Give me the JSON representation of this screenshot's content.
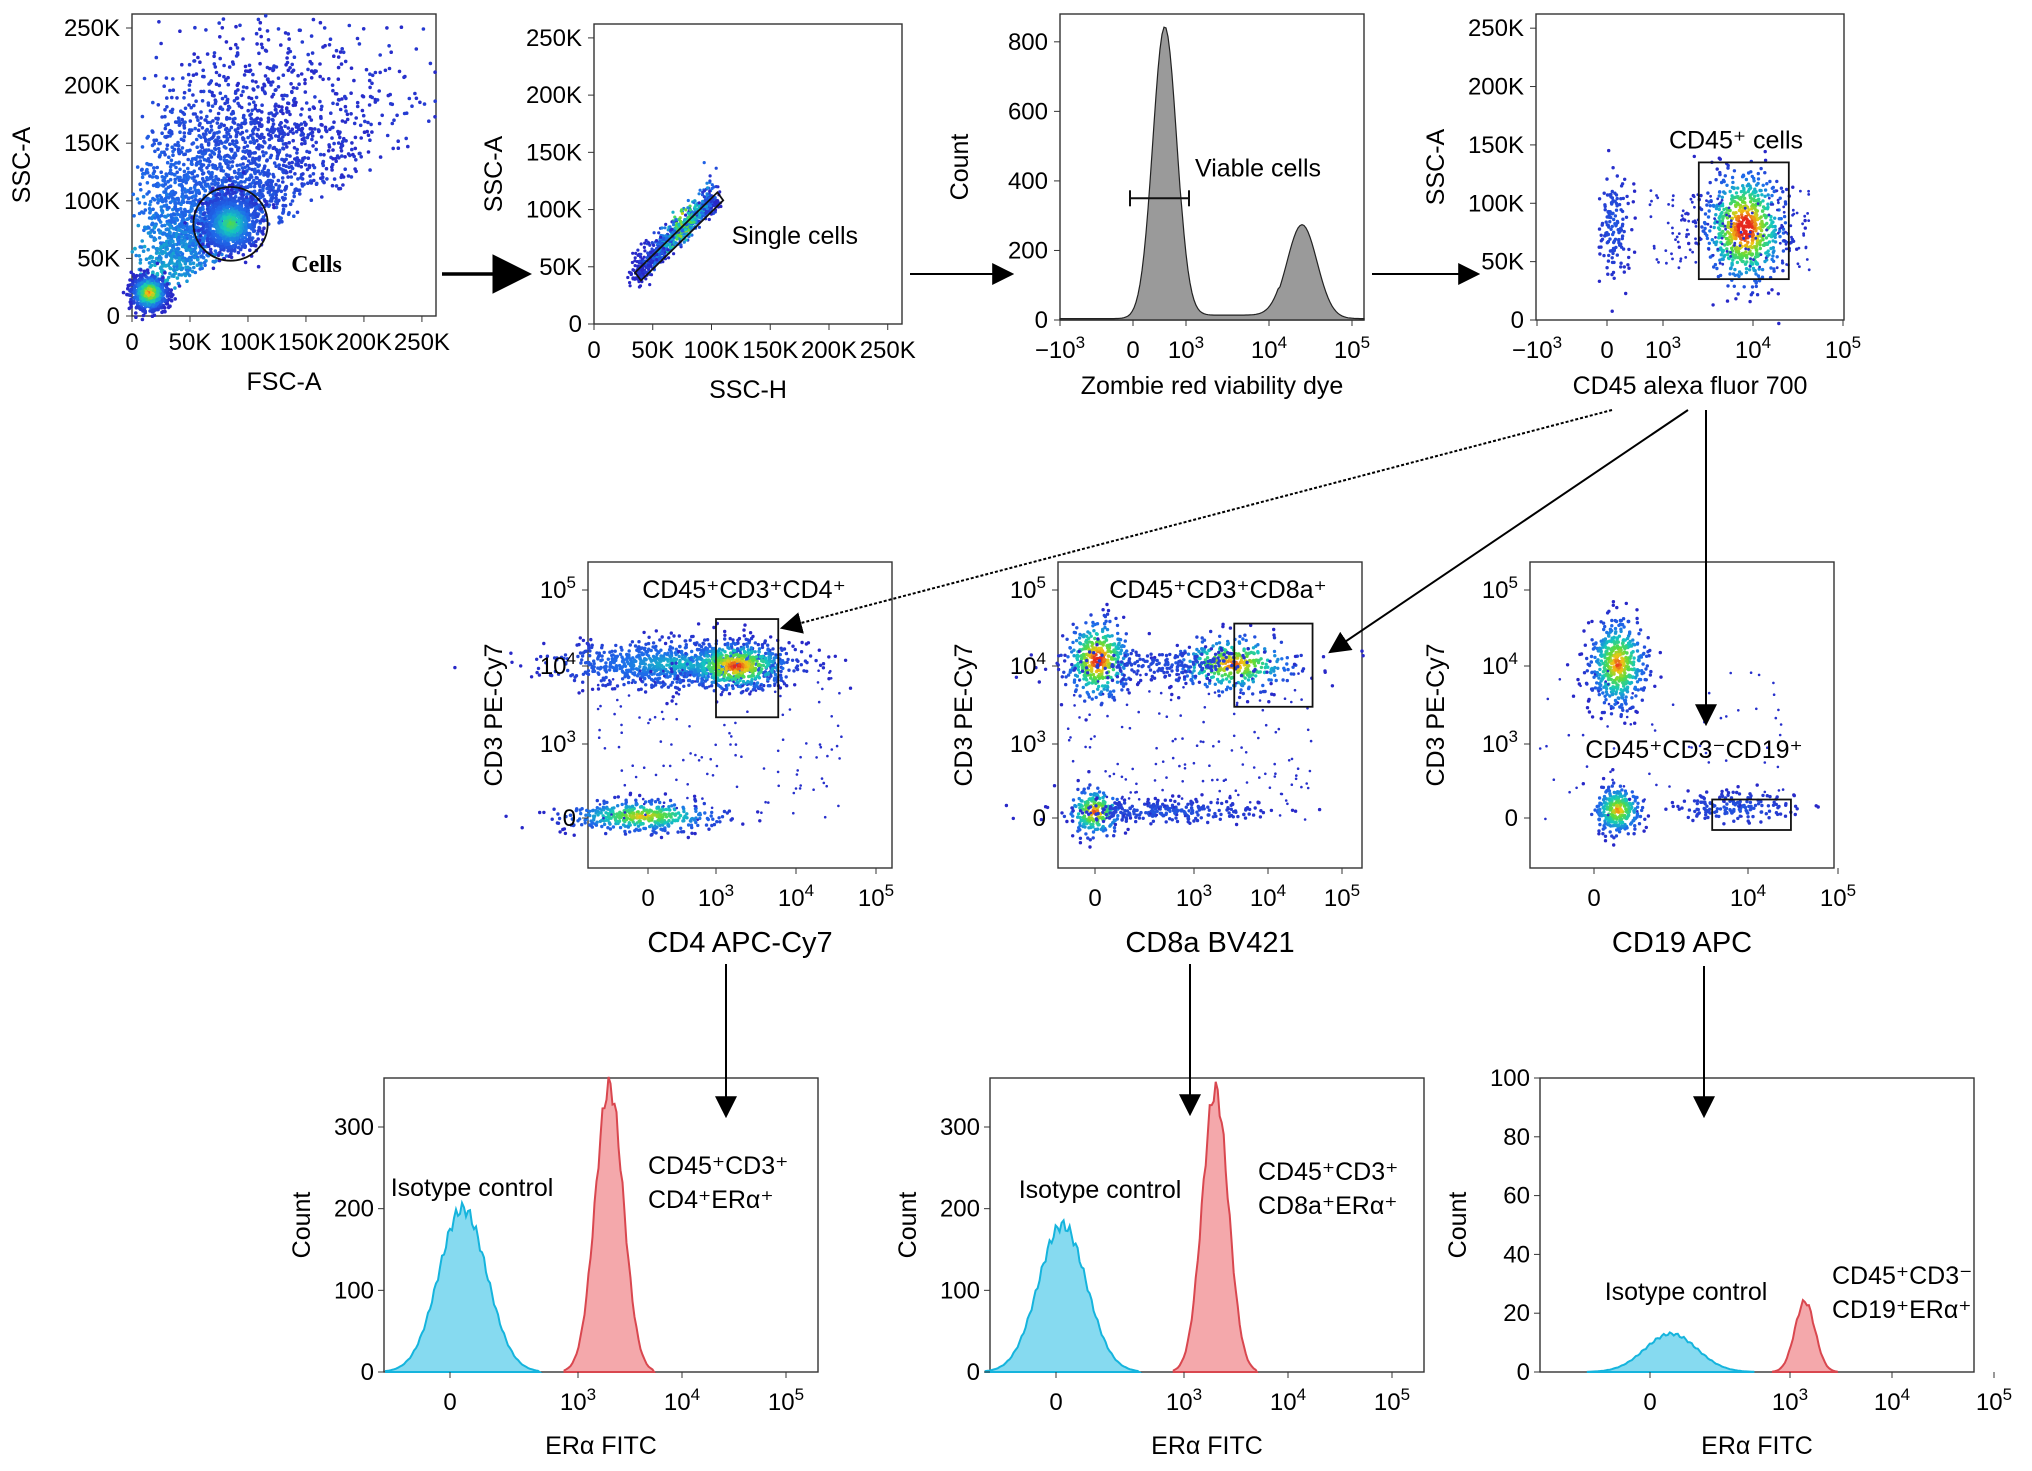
{
  "colors": {
    "isotype_fill": "#7fd8ef",
    "isotype_stroke": "#15b4dd",
    "stain_fill": "#f3a3a6",
    "stain_stroke": "#d9474f",
    "histogram_gray": "#9a9a9a",
    "density_low": "#1f2ecf",
    "density_mid": "#16c7a3",
    "density_high": "#e8321e"
  },
  "chart_data": [
    {
      "id": "fsc_ssc",
      "type": "scatter",
      "xlabel": "FSC-A",
      "ylabel": "SSC-A",
      "x_ticks": [
        "0",
        "50K",
        "100K",
        "150K",
        "200K",
        "250K"
      ],
      "y_ticks": [
        "0",
        "50K",
        "100K",
        "150K",
        "200K",
        "250K"
      ],
      "xlim": [
        0,
        262144
      ],
      "ylim": [
        0,
        262144
      ],
      "gate": {
        "label": "Cells",
        "shape": "ellipse",
        "center": [
          85000,
          80000
        ],
        "radius": [
          32000,
          32000
        ]
      },
      "populations": [
        {
          "name": "",
          "center": [
            15000,
            20000
          ],
          "spread": [
            15000,
            15000
          ]
        },
        {
          "name": "",
          "center": [
            85000,
            80000
          ],
          "spread": [
            25000,
            25000
          ]
        }
      ]
    },
    {
      "id": "singlets",
      "type": "scatter",
      "xlabel": "SSC-H",
      "ylabel": "SSC-A",
      "x_ticks": [
        "0",
        "50K",
        "100K",
        "150K",
        "200K",
        "250K"
      ],
      "y_ticks": [
        "0",
        "50K",
        "100K",
        "150K",
        "200K",
        "250K"
      ],
      "xlim": [
        0,
        262144
      ],
      "ylim": [
        0,
        262144
      ],
      "gate": {
        "label": "Single cells",
        "shape": "polygon",
        "points": [
          [
            35000,
            45000
          ],
          [
            105000,
            115000
          ],
          [
            110000,
            108000
          ],
          [
            40000,
            38000
          ]
        ]
      }
    },
    {
      "id": "viability",
      "type": "area",
      "xlabel": "Zombie red viability dye",
      "ylabel": "Count",
      "x_ticks": [
        "−10^3",
        "0",
        "10^3",
        "10^4",
        "10^5"
      ],
      "y_ticks": [
        "0",
        "200",
        "400",
        "600",
        "800"
      ],
      "ylim": [
        0,
        880
      ],
      "gate": {
        "label": "Viable cells",
        "x_range": [
          0,
          1000
        ],
        "y": 350
      },
      "series": [
        {
          "name": "",
          "peaks": [
            {
              "x": 600,
              "height": 840
            },
            {
              "x": 25000,
              "height": 270
            }
          ]
        }
      ]
    },
    {
      "id": "cd45",
      "type": "scatter",
      "xlabel": "CD45 alexa fluor 700",
      "ylabel": "SSC-A",
      "x_ticks": [
        "−10^3",
        "0",
        "10^3",
        "10^4",
        "10^5"
      ],
      "y_ticks": [
        "0",
        "50K",
        "100K",
        "150K",
        "200K",
        "250K"
      ],
      "ylim": [
        0,
        262144
      ],
      "gate": {
        "label": "CD45⁺ cells",
        "x_range": [
          2500,
          25000
        ],
        "y_range": [
          35000,
          135000
        ]
      }
    },
    {
      "id": "cd4",
      "type": "scatter",
      "xlabel": "CD4 APC-Cy7",
      "ylabel": "CD3 PE-Cy7",
      "x_ticks": [
        "0",
        "10^3",
        "10^4",
        "10^5"
      ],
      "y_ticks": [
        "0",
        "10^3",
        "10^4",
        "10^5"
      ],
      "gate": {
        "label": "CD45⁺CD3⁺CD4⁺",
        "x_range": [
          1000,
          6000
        ],
        "y_range": [
          2200,
          40000
        ]
      }
    },
    {
      "id": "cd8",
      "type": "scatter",
      "xlabel": "CD8a BV421",
      "ylabel": "CD3 PE-Cy7",
      "x_ticks": [
        "0",
        "10^3",
        "10^4",
        "10^5"
      ],
      "y_ticks": [
        "0",
        "10^3",
        "10^4",
        "10^5"
      ],
      "gate": {
        "label": "CD45⁺CD3⁺CD8a⁺",
        "x_range": [
          3500,
          40000
        ],
        "y_range": [
          3000,
          35000
        ]
      }
    },
    {
      "id": "cd19",
      "type": "scatter",
      "xlabel": "CD19 APC",
      "ylabel": "CD3 PE-Cy7",
      "x_ticks": [
        "0",
        "10^4",
        "10^5"
      ],
      "y_ticks": [
        "0",
        "10^3",
        "10^4",
        "10^5"
      ],
      "gate": {
        "label": "CD45⁺CD3⁻CD19⁺",
        "x_range": [
          4000,
          30000
        ],
        "y_range": [
          -200,
          250
        ]
      }
    },
    {
      "id": "era_cd4",
      "type": "area",
      "xlabel": "ERα FITC",
      "ylabel": "Count",
      "x_ticks": [
        "0",
        "10^3",
        "10^4",
        "10^5"
      ],
      "y_ticks": [
        "0",
        "100",
        "200",
        "300"
      ],
      "ylim": [
        0,
        360
      ],
      "series": [
        {
          "name": "Isotype control",
          "peak_x": 100,
          "height": 200
        },
        {
          "name": "CD45⁺CD3⁺CD4⁺ERα⁺",
          "peak_x": 2000,
          "height": 350
        }
      ],
      "labels": {
        "isotype": "Isotype control",
        "positive_line1": "CD45⁺CD3⁺",
        "positive_line2": "CD4⁺ERα⁺"
      }
    },
    {
      "id": "era_cd8",
      "type": "area",
      "xlabel": "ERα FITC",
      "ylabel": "Count",
      "x_ticks": [
        "0",
        "10^3",
        "10^4",
        "10^5"
      ],
      "y_ticks": [
        "0",
        "100",
        "200",
        "300"
      ],
      "ylim": [
        0,
        360
      ],
      "series": [
        {
          "name": "Isotype control",
          "peak_x": 50,
          "height": 180
        },
        {
          "name": "CD45⁺CD3⁺CD8a⁺ERα⁺",
          "peak_x": 2000,
          "height": 345
        }
      ],
      "labels": {
        "isotype": "Isotype control",
        "positive_line1": "CD45⁺CD3⁺",
        "positive_line2": "CD8a⁺ERα⁺"
      }
    },
    {
      "id": "era_cd19",
      "type": "area",
      "xlabel": "ERα FITC",
      "ylabel": "Count",
      "x_ticks": [
        "0",
        "10^3",
        "10^4",
        "10^5"
      ],
      "y_ticks": [
        "0",
        "20",
        "40",
        "60",
        "80",
        "100"
      ],
      "ylim": [
        0,
        100
      ],
      "series": [
        {
          "name": "Isotype control",
          "peak_x": 150,
          "height": 13
        },
        {
          "name": "CD45⁺CD3⁻CD19⁺ERα⁺",
          "peak_x": 1400,
          "height": 24
        }
      ],
      "labels": {
        "isotype": "Isotype control",
        "positive_line1": "CD45⁺CD3⁻",
        "positive_line2": "CD19⁺ERα⁺"
      }
    }
  ]
}
